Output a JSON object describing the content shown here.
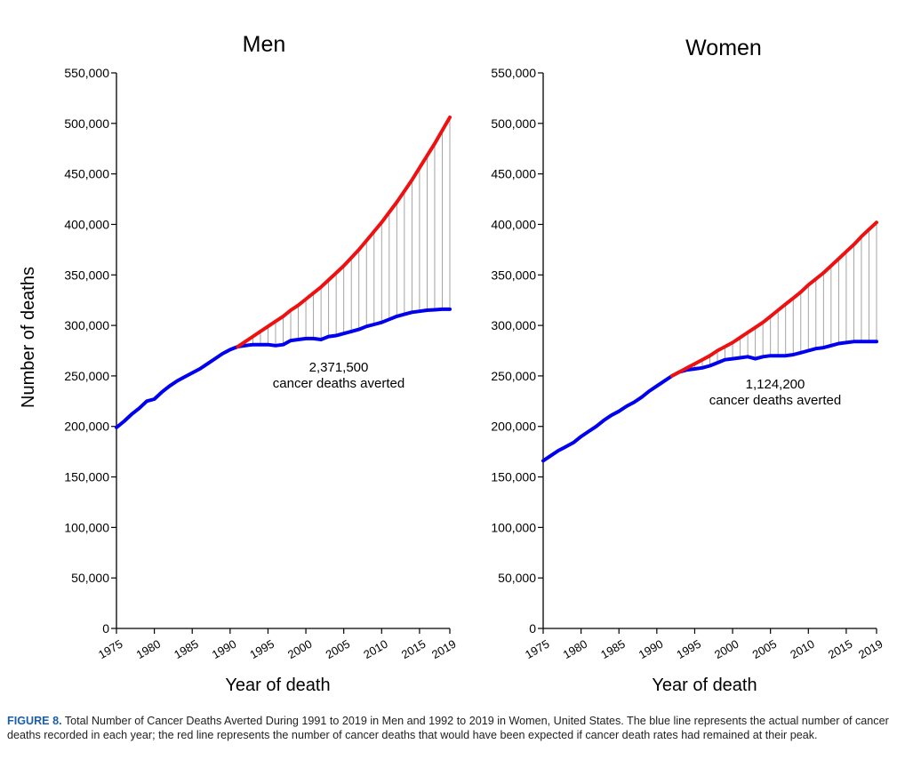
{
  "chart_data": [
    {
      "type": "line",
      "title": "Men",
      "ylabel": "Number of deaths",
      "xlabel": "Year of death",
      "xlim": [
        1975,
        2019
      ],
      "ylim": [
        0,
        550000
      ],
      "yticks": [
        0,
        50000,
        100000,
        150000,
        200000,
        250000,
        300000,
        350000,
        400000,
        450000,
        500000,
        550000
      ],
      "ytick_labels": [
        "0",
        "50,000",
        "100,000",
        "150,000",
        "200,000",
        "250,000",
        "300,000",
        "350,000",
        "400,000",
        "450,000",
        "500,000",
        "550,000"
      ],
      "xticks": [
        1975,
        1980,
        1985,
        1990,
        1995,
        2000,
        2005,
        2010,
        2015,
        2019
      ],
      "xtick_labels": [
        "1975",
        "1980",
        "1985",
        "1990",
        "1995",
        "2000",
        "2005",
        "2010",
        "2015",
        "2019"
      ],
      "annotation": {
        "value": "2,371,500",
        "text": "cancer deaths averted"
      },
      "grid": false,
      "series": [
        {
          "color": "#0000ee",
          "x": [
            1975,
            1976,
            1977,
            1978,
            1979,
            1980,
            1981,
            1982,
            1983,
            1984,
            1985,
            1986,
            1987,
            1988,
            1989,
            1990,
            1991,
            1992,
            1993,
            1994,
            1995,
            1996,
            1997,
            1998,
            1999,
            2000,
            2001,
            2002,
            2003,
            2004,
            2005,
            2006,
            2007,
            2008,
            2009,
            2010,
            2011,
            2012,
            2013,
            2014,
            2015,
            2016,
            2017,
            2018,
            2019
          ],
          "y": [
            199000,
            205000,
            212000,
            218000,
            225000,
            227000,
            234000,
            240000,
            245000,
            249000,
            253000,
            257000,
            262000,
            267000,
            272000,
            276000,
            279000,
            280000,
            281000,
            281000,
            281000,
            280000,
            281000,
            285000,
            286000,
            287000,
            287000,
            286000,
            289000,
            290000,
            292000,
            294000,
            296000,
            299000,
            301000,
            303000,
            306000,
            309000,
            311000,
            313000,
            314000,
            315000,
            315500,
            316000,
            316000
          ]
        },
        {
          "color": "#ee1111",
          "x": [
            1991,
            1992,
            1993,
            1994,
            1995,
            1996,
            1997,
            1998,
            1999,
            2000,
            2001,
            2002,
            2003,
            2004,
            2005,
            2006,
            2007,
            2008,
            2009,
            2010,
            2011,
            2012,
            2013,
            2014,
            2015,
            2016,
            2017,
            2018,
            2019
          ],
          "y": [
            279000,
            284000,
            289000,
            294000,
            299000,
            304000,
            309000,
            315000,
            320000,
            326000,
            332000,
            338000,
            345000,
            352000,
            359000,
            367000,
            375000,
            384000,
            393000,
            402000,
            412000,
            422000,
            433000,
            444000,
            456000,
            468000,
            480000,
            493000,
            506000
          ]
        }
      ]
    },
    {
      "type": "line",
      "title": "Women",
      "xlabel": "Year of death",
      "xlim": [
        1975,
        2019
      ],
      "ylim": [
        0,
        550000
      ],
      "yticks": [
        0,
        50000,
        100000,
        150000,
        200000,
        250000,
        300000,
        350000,
        400000,
        450000,
        500000,
        550000
      ],
      "ytick_labels": [
        "0",
        "50,000",
        "100,000",
        "150,000",
        "200,000",
        "250,000",
        "300,000",
        "350,000",
        "400,000",
        "450,000",
        "500,000",
        "550,000"
      ],
      "xticks": [
        1975,
        1980,
        1985,
        1990,
        1995,
        2000,
        2005,
        2010,
        2015,
        2019
      ],
      "xtick_labels": [
        "1975",
        "1980",
        "1985",
        "1990",
        "1995",
        "2000",
        "2005",
        "2010",
        "2015",
        "2019"
      ],
      "annotation": {
        "value": "1,124,200",
        "text": "cancer deaths averted"
      },
      "grid": false,
      "series": [
        {
          "color": "#0000ee",
          "x": [
            1975,
            1976,
            1977,
            1978,
            1979,
            1980,
            1981,
            1982,
            1983,
            1984,
            1985,
            1986,
            1987,
            1988,
            1989,
            1990,
            1991,
            1992,
            1993,
            1994,
            1995,
            1996,
            1997,
            1998,
            1999,
            2000,
            2001,
            2002,
            2003,
            2004,
            2005,
            2006,
            2007,
            2008,
            2009,
            2010,
            2011,
            2012,
            2013,
            2014,
            2015,
            2016,
            2017,
            2018,
            2019
          ],
          "y": [
            166000,
            171000,
            176000,
            180000,
            184000,
            190000,
            195000,
            200000,
            206000,
            211000,
            215000,
            220000,
            224000,
            229000,
            235000,
            240000,
            245000,
            250000,
            254000,
            256000,
            257000,
            258000,
            260000,
            263000,
            266000,
            267000,
            268000,
            269000,
            267000,
            269000,
            270000,
            270000,
            270000,
            271000,
            273000,
            275000,
            277000,
            278000,
            280000,
            282000,
            283000,
            284000,
            284000,
            284000,
            284000
          ]
        },
        {
          "color": "#ee1111",
          "x": [
            1992,
            1993,
            1994,
            1995,
            1996,
            1997,
            1998,
            1999,
            2000,
            2001,
            2002,
            2003,
            2004,
            2005,
            2006,
            2007,
            2008,
            2009,
            2010,
            2011,
            2012,
            2013,
            2014,
            2015,
            2016,
            2017,
            2018,
            2019
          ],
          "y": [
            250000,
            254000,
            258000,
            262000,
            266000,
            270000,
            275000,
            279000,
            283000,
            288000,
            293000,
            298000,
            303000,
            309000,
            315000,
            321000,
            327000,
            333000,
            340000,
            346000,
            352000,
            359000,
            366000,
            373000,
            380000,
            388000,
            395000,
            402000
          ]
        }
      ]
    }
  ],
  "caption": {
    "label": "FIGURE 8.",
    "text": " Total Number of Cancer Deaths Averted During 1991 to 2019 in Men and 1992 to 2019 in Women, United States. The blue line represents the actual number of cancer deaths recorded in each year; the red line represents the number of cancer deaths that would have been expected if cancer death rates had remained at their peak."
  }
}
